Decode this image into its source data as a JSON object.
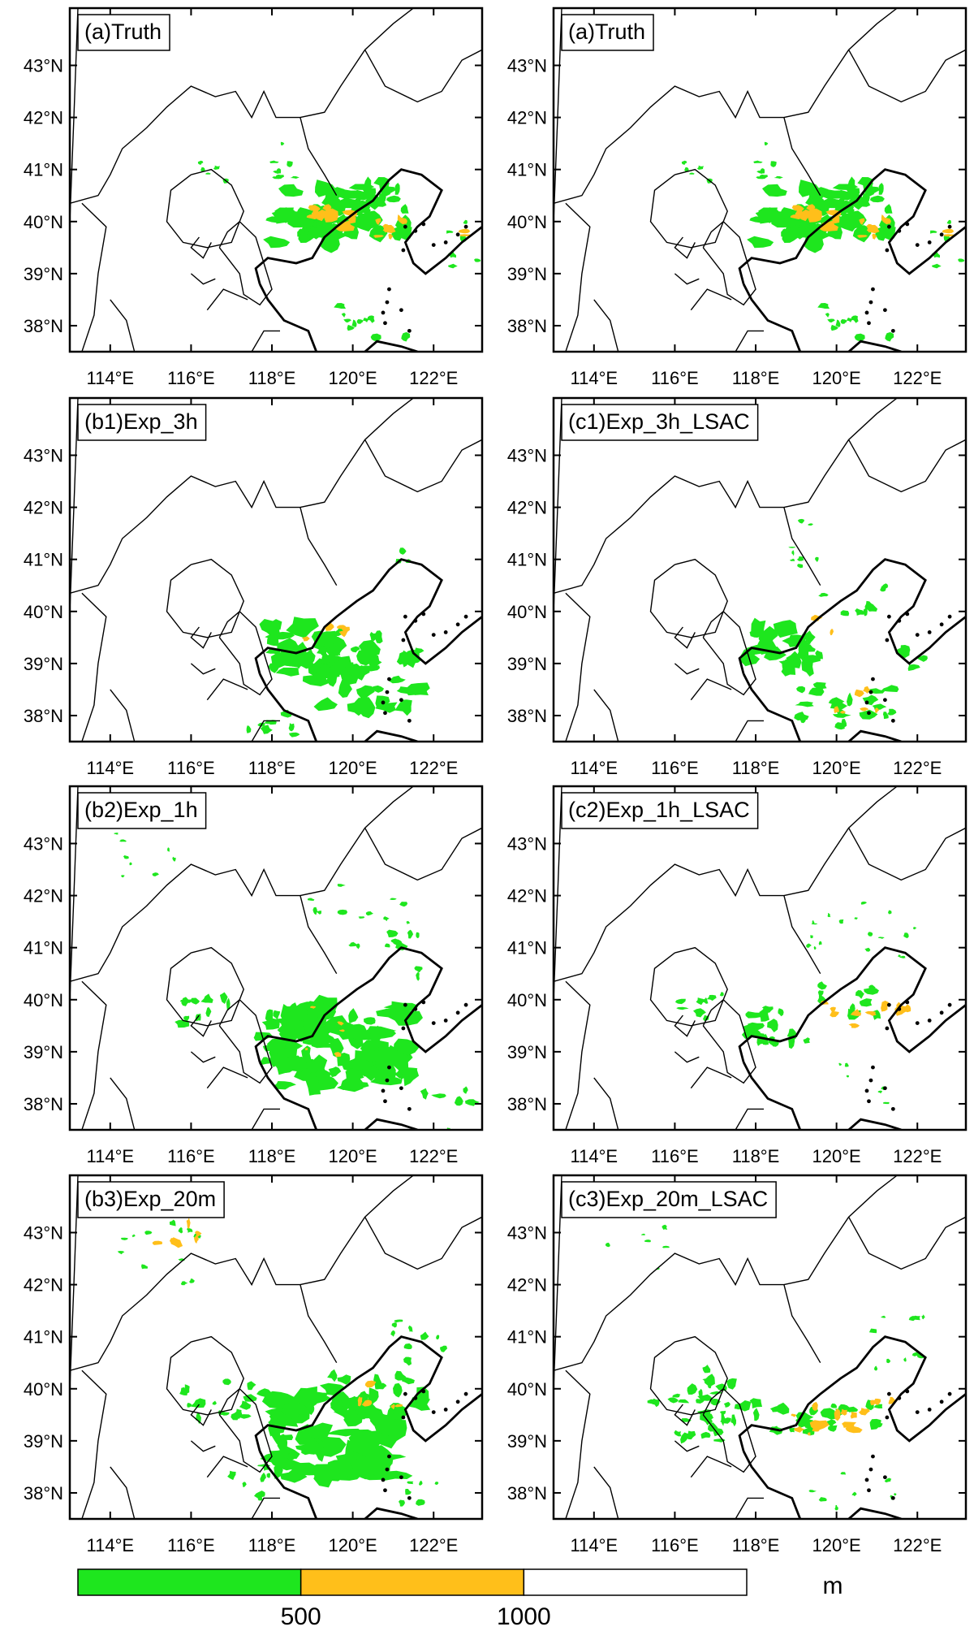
{
  "colors": {
    "green": "#1ee61e",
    "orange": "#ffbf1a",
    "coast": "#000000",
    "border": "#000000",
    "background": "#ffffff"
  },
  "axes": {
    "lon_ticks": [
      "114°E",
      "116°E",
      "118°E",
      "120°E",
      "122°E"
    ],
    "lat_ticks": [
      "43°N",
      "42°N",
      "41°N",
      "40°N",
      "39°N",
      "38°N"
    ],
    "lon_range": [
      113.0,
      123.2
    ],
    "lat_range": [
      37.5,
      44.1
    ]
  },
  "panels": [
    {
      "title": "(a)Truth",
      "variant": "truth"
    },
    {
      "title": "(a)Truth",
      "variant": "truth"
    },
    {
      "title": "(b1)Exp_3h",
      "variant": "b1"
    },
    {
      "title": "(c1)Exp_3h_LSAC",
      "variant": "c1"
    },
    {
      "title": "(b2)Exp_1h",
      "variant": "b2"
    },
    {
      "title": "(c2)Exp_1h_LSAC",
      "variant": "c2"
    },
    {
      "title": "(b3)Exp_20m",
      "variant": "b3"
    },
    {
      "title": "(c3)Exp_20m_LSAC",
      "variant": "c3"
    }
  ],
  "colorbar": {
    "labels": [
      "500",
      "1000"
    ],
    "unit": "m",
    "bins": [
      {
        "color": "#1ee61e",
        "range": "< 500"
      },
      {
        "color": "#ffbf1a",
        "range": "500-1000"
      },
      {
        "color": "#ffffff",
        "range": "> 1000"
      }
    ]
  }
}
